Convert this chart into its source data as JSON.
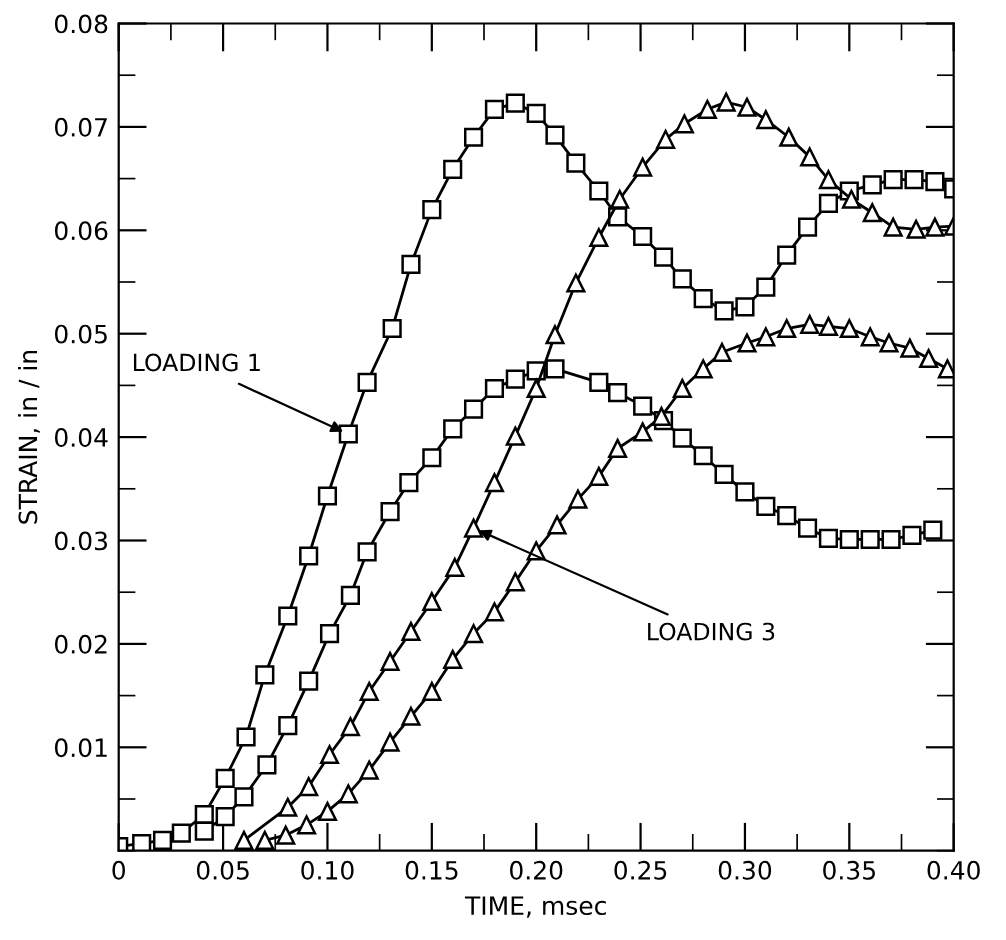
{
  "chart_data": {
    "type": "line",
    "xlabel": "TIME, msec",
    "ylabel": "STRAIN, in / in",
    "xlim": [
      0,
      0.4
    ],
    "ylim": [
      0,
      0.08
    ],
    "xticks": [
      {
        "value": 0,
        "label": "0"
      },
      {
        "value": 0.05,
        "label": "0.05"
      },
      {
        "value": 0.1,
        "label": "0.10"
      },
      {
        "value": 0.15,
        "label": "0.15"
      },
      {
        "value": 0.2,
        "label": "0.20"
      },
      {
        "value": 0.25,
        "label": "0.25"
      },
      {
        "value": 0.3,
        "label": "0.30"
      },
      {
        "value": 0.35,
        "label": "0.35"
      },
      {
        "value": 0.4,
        "label": "0.40"
      }
    ],
    "yticks": [
      {
        "value": 0.01,
        "label": "0.01"
      },
      {
        "value": 0.02,
        "label": "0.02"
      },
      {
        "value": 0.03,
        "label": "0.03"
      },
      {
        "value": 0.04,
        "label": "0.04"
      },
      {
        "value": 0.05,
        "label": "0.05"
      },
      {
        "value": 0.06,
        "label": "0.06"
      },
      {
        "value": 0.07,
        "label": "0.07"
      },
      {
        "value": 0.08,
        "label": "0.08"
      }
    ],
    "grid": false,
    "legend": false,
    "line_style": "solid",
    "series": [
      {
        "color": "#000000",
        "marker": "square",
        "x": [
          0,
          0.011,
          0.021,
          0.03,
          0.041,
          0.051,
          0.061,
          0.07,
          0.081,
          0.091,
          0.1,
          0.11,
          0.119,
          0.131,
          0.14,
          0.15,
          0.16,
          0.17,
          0.18,
          0.19,
          0.2,
          0.209,
          0.219,
          0.23,
          0.239,
          0.251,
          0.261,
          0.27,
          0.28,
          0.29,
          0.3,
          0.31,
          0.32,
          0.33,
          0.34,
          0.35,
          0.361,
          0.371,
          0.381,
          0.391,
          0.4
        ],
        "values": [
          0.0004,
          0.0007,
          0.001,
          0.0017,
          0.0035,
          0.007,
          0.011,
          0.017,
          0.0227,
          0.0285,
          0.0343,
          0.0403,
          0.0453,
          0.0505,
          0.0567,
          0.062,
          0.0659,
          0.069,
          0.0717,
          0.0723,
          0.0713,
          0.0692,
          0.0665,
          0.0638,
          0.0613,
          0.0594,
          0.0574,
          0.0553,
          0.0534,
          0.0522,
          0.0526,
          0.0545,
          0.0576,
          0.0603,
          0.0626,
          0.0638,
          0.0644,
          0.0649,
          0.0649,
          0.0647,
          0.064
        ]
      },
      {
        "color": "#000000",
        "marker": "square",
        "x": [
          0.041,
          0.051,
          0.06,
          0.071,
          0.081,
          0.091,
          0.101,
          0.111,
          0.119,
          0.13,
          0.139,
          0.15,
          0.16,
          0.17,
          0.18,
          0.19,
          0.2,
          0.209,
          0.23,
          0.239,
          0.251,
          0.261,
          0.27,
          0.28,
          0.29,
          0.3,
          0.31,
          0.32,
          0.33,
          0.34,
          0.35,
          0.36,
          0.37,
          0.38,
          0.39
        ],
        "values": [
          0.0019,
          0.0033,
          0.0052,
          0.0083,
          0.0121,
          0.0164,
          0.021,
          0.0247,
          0.0289,
          0.0328,
          0.0356,
          0.038,
          0.0408,
          0.0427,
          0.0447,
          0.0456,
          0.0464,
          0.0466,
          0.0453,
          0.0443,
          0.043,
          0.0416,
          0.0399,
          0.0382,
          0.0364,
          0.0347,
          0.0333,
          0.0324,
          0.0312,
          0.0302,
          0.0301,
          0.0301,
          0.0301,
          0.0305,
          0.031
        ]
      },
      {
        "color": "#000000",
        "marker": "triangle",
        "x": [
          0.06,
          0.081,
          0.091,
          0.101,
          0.111,
          0.12,
          0.13,
          0.14,
          0.15,
          0.161,
          0.17,
          0.18,
          0.19,
          0.2,
          0.209,
          0.219,
          0.23,
          0.24,
          0.251,
          0.262,
          0.271,
          0.282,
          0.291,
          0.301,
          0.31,
          0.321,
          0.331,
          0.34,
          0.351,
          0.361,
          0.371,
          0.382,
          0.391,
          0.4
        ],
        "values": [
          0.001,
          0.0042,
          0.0062,
          0.0093,
          0.012,
          0.0154,
          0.0183,
          0.0212,
          0.0241,
          0.0274,
          0.0312,
          0.0356,
          0.0401,
          0.0447,
          0.0499,
          0.0549,
          0.0593,
          0.063,
          0.0661,
          0.0688,
          0.0703,
          0.0717,
          0.0724,
          0.0719,
          0.0707,
          0.069,
          0.0671,
          0.0649,
          0.063,
          0.0617,
          0.0603,
          0.0601,
          0.0603,
          0.0604
        ]
      },
      {
        "color": "#000000",
        "marker": "triangle",
        "x": [
          0.07,
          0.08,
          0.09,
          0.1,
          0.11,
          0.12,
          0.13,
          0.14,
          0.15,
          0.16,
          0.17,
          0.18,
          0.19,
          0.2,
          0.21,
          0.22,
          0.23,
          0.239,
          0.251,
          0.26,
          0.27,
          0.28,
          0.289,
          0.301,
          0.31,
          0.32,
          0.331,
          0.34,
          0.35,
          0.36,
          0.369,
          0.379,
          0.388,
          0.397
        ],
        "values": [
          0.001,
          0.0015,
          0.0025,
          0.0038,
          0.0055,
          0.0078,
          0.0105,
          0.013,
          0.0154,
          0.0185,
          0.021,
          0.0231,
          0.026,
          0.029,
          0.0315,
          0.034,
          0.0362,
          0.0389,
          0.0405,
          0.042,
          0.0447,
          0.0466,
          0.0482,
          0.0491,
          0.0497,
          0.0505,
          0.0509,
          0.0507,
          0.0505,
          0.0497,
          0.0491,
          0.0486,
          0.0476,
          0.0466
        ]
      }
    ],
    "annotations": [
      {
        "text": "LOADING 1",
        "x": 0.11,
        "y": 0.0403
      },
      {
        "text": "LOADING 3",
        "x": 0.17,
        "y": 0.0312
      }
    ]
  }
}
